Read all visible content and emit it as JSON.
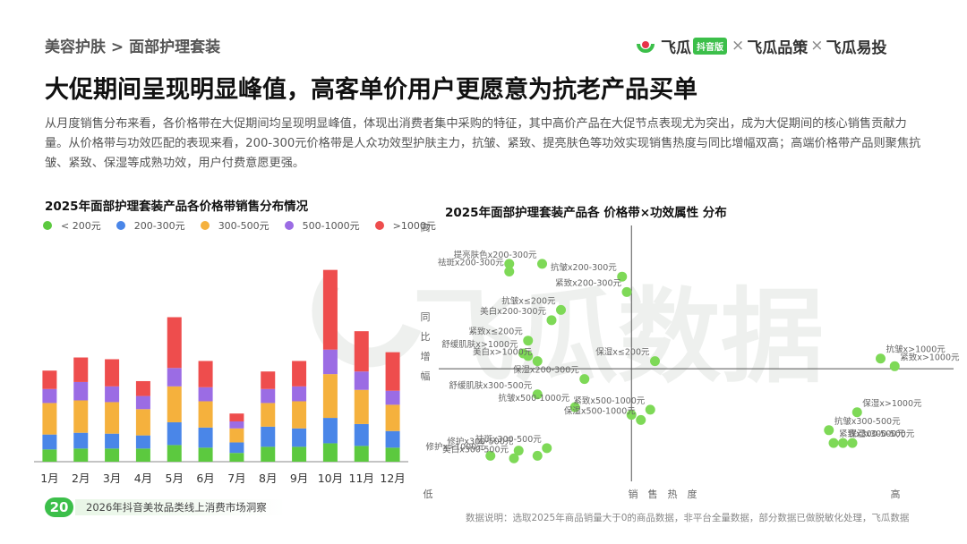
{
  "watermark": "飞瓜数据",
  "breadcrumb": "美容护肤 > 面部护理套装",
  "brand": {
    "name1": "飞瓜",
    "tag": "抖音版",
    "sep": "×",
    "name2": "飞瓜品策",
    "name3": "飞瓜易投",
    "accent": "#3cbf4a",
    "logo_red": "#e8334a"
  },
  "title": "大促期间呈现明显峰值，高客单价用户更愿意为抗老产品买单",
  "description": "从月度销售分布来看，各价格带在大促期间均呈现明显峰值，体现出消费者集中采购的特征，其中高价产品在大促节点表现尤为突出，成为大促期间的核心销售贡献力量。从价格带与功效匹配的表现来看，200-300元价格带是人众功效型护肤主力，抗皱、紧致、提亮肤色等功效实现销售热度与同比增幅双高；高端价格带产品则聚焦抗皱、紧致、保湿等成熟功效，用户付费意愿更强。",
  "footer": {
    "page": "20",
    "text": "2026年抖音美妆品类线上消费市场洞察",
    "note": "数据说明：选取2025年商品销量大于0的商品数据，非平台全量数据，部分数据已做脱敏化处理，飞瓜数据"
  },
  "chart_data": [
    {
      "type": "bar",
      "stacked": true,
      "title": "2025年面部护理套装产品各价格带销售分布情况",
      "categories": [
        "1月",
        "2月",
        "3月",
        "4月",
        "5月",
        "6月",
        "7月",
        "8月",
        "9月",
        "10月",
        "11月",
        "12月"
      ],
      "series": [
        {
          "name": "< 200元",
          "color": "#5cc93f",
          "values": [
            14,
            15,
            15,
            15,
            19,
            16,
            10,
            17,
            17,
            21,
            18,
            16
          ]
        },
        {
          "name": "200-300元",
          "color": "#4a86e8",
          "values": [
            17,
            18,
            17,
            15,
            26,
            23,
            12,
            23,
            21,
            29,
            25,
            19
          ]
        },
        {
          "name": "300-500元",
          "color": "#f5b13d",
          "values": [
            36,
            37,
            36,
            30,
            41,
            30,
            16,
            27,
            31,
            50,
            39,
            30
          ]
        },
        {
          "name": "500-1000元",
          "color": "#9b6ce4",
          "values": [
            16,
            21,
            18,
            15,
            21,
            16,
            8,
            16,
            17,
            28,
            21,
            16
          ]
        },
        {
          "name": ">1000元",
          "color": "#ee4d4d",
          "values": [
            21,
            28,
            31,
            17,
            58,
            30,
            9,
            20,
            29,
            91,
            46,
            44
          ]
        }
      ],
      "ylim": [
        0,
        235
      ],
      "legend": "top",
      "grid": false
    },
    {
      "type": "scatter",
      "title": "2025年面部护理套装产品各 价格带×功效属性 分布",
      "xlabel": "销售热度",
      "ylabel": "同比增幅",
      "x_low": "低",
      "x_high": "高",
      "y_high": "高",
      "xlim": [
        0,
        100
      ],
      "ylim": [
        0,
        100
      ],
      "point_color": "#7ed957",
      "quadrant_lines": {
        "x": 41,
        "y": 44
      },
      "points": [
        {
          "label": "提亮肤色x200-300元",
          "x": 22,
          "y": 85
        },
        {
          "label": "",
          "x": 15,
          "y": 85
        },
        {
          "label": "祛斑x200-300元",
          "x": 15,
          "y": 82
        },
        {
          "label": "抗皱x200-300元",
          "x": 39,
          "y": 80
        },
        {
          "label": "紧致x200-300元",
          "x": 40,
          "y": 74
        },
        {
          "label": "美白x200-300元",
          "x": 24,
          "y": 63
        },
        {
          "label": "抗皱x≤200元",
          "x": 26,
          "y": 67
        },
        {
          "label": "紧致x≤200元",
          "x": 19,
          "y": 55
        },
        {
          "label": "舒缓肌肤x>1000元",
          "x": 18,
          "y": 50
        },
        {
          "label": "",
          "x": 19,
          "y": 49
        },
        {
          "label": "美白x>1000元",
          "x": 21,
          "y": 47
        },
        {
          "label": "保湿x≤200元",
          "x": 46,
          "y": 47
        },
        {
          "label": "保湿x200-300元",
          "x": 31,
          "y": 40
        },
        {
          "label": "抗皱x>1000元",
          "x": 94,
          "y": 48
        },
        {
          "label": "紧致x>1000元",
          "x": 97,
          "y": 45
        },
        {
          "label": "舒缓肌肤x300-500元",
          "x": 21,
          "y": 34
        },
        {
          "label": "抗皱x500-1000元",
          "x": 29,
          "y": 29
        },
        {
          "label": "紧致x500-1000元",
          "x": 45,
          "y": 28
        },
        {
          "label": "",
          "x": 41,
          "y": 26
        },
        {
          "label": "保湿x500-1000元",
          "x": 43,
          "y": 24
        },
        {
          "label": "保湿x>1000元",
          "x": 89,
          "y": 27
        },
        {
          "label": "抗皱x300-500元",
          "x": 83,
          "y": 20
        },
        {
          "label": "保湿x300-500元",
          "x": 86,
          "y": 15
        },
        {
          "label": "",
          "x": 88,
          "y": 15
        },
        {
          "label": "紧致x300-500元",
          "x": 84,
          "y": 15
        },
        {
          "label": "祛斑x300-500元",
          "x": 23,
          "y": 13
        },
        {
          "label": "修护x300-500元",
          "x": 17,
          "y": 12
        },
        {
          "label": "修护x>1000元",
          "x": 11,
          "y": 10
        },
        {
          "label": "",
          "x": 21,
          "y": 10
        },
        {
          "label": "美白x300-500元",
          "x": 16,
          "y": 9
        }
      ]
    }
  ]
}
